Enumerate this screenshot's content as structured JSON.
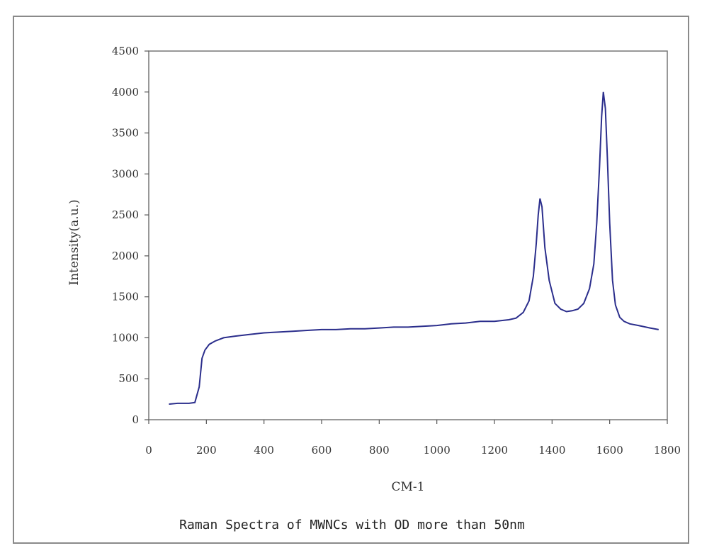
{
  "chart_data": {
    "type": "line",
    "title": "",
    "caption": "Raman Spectra of MWNCs with OD more than 50nm",
    "xlabel": "CM-1",
    "ylabel": "Intensity(a.u.)",
    "xlim": [
      0,
      1800
    ],
    "ylim": [
      0,
      4500
    ],
    "x_ticks": [
      0,
      200,
      400,
      600,
      800,
      1000,
      1200,
      1400,
      1600,
      1800
    ],
    "x_tick_labels": [
      "0",
      "200",
      "400",
      "600",
      "800",
      "1000",
      "1200",
      "1400",
      "1600",
      "1800"
    ],
    "y_ticks": [
      0,
      500,
      1000,
      1500,
      2000,
      2500,
      3000,
      3500,
      4000,
      4500
    ],
    "y_tick_labels": [
      "0",
      "500",
      "1000",
      "1500",
      "2000",
      "2500",
      "3000",
      "3500",
      "4000",
      "4500"
    ],
    "grid": false,
    "line_color": "#2b2e8c",
    "series": [
      {
        "x": [
          70,
          100,
          140,
          160,
          175,
          185,
          195,
          210,
          230,
          260,
          300,
          350,
          400,
          450,
          500,
          550,
          600,
          650,
          700,
          750,
          800,
          850,
          900,
          950,
          1000,
          1050,
          1100,
          1150,
          1200,
          1250,
          1275,
          1300,
          1320,
          1335,
          1345,
          1352,
          1358,
          1365,
          1375,
          1390,
          1410,
          1430,
          1450,
          1470,
          1490,
          1510,
          1530,
          1545,
          1555,
          1565,
          1572,
          1578,
          1585,
          1592,
          1600,
          1610,
          1620,
          1635,
          1650,
          1670,
          1700,
          1740,
          1770
        ],
        "y": [
          190,
          200,
          200,
          210,
          400,
          750,
          850,
          920,
          960,
          1000,
          1020,
          1040,
          1060,
          1070,
          1080,
          1090,
          1100,
          1100,
          1110,
          1110,
          1120,
          1130,
          1130,
          1140,
          1150,
          1170,
          1180,
          1200,
          1200,
          1220,
          1240,
          1310,
          1450,
          1750,
          2150,
          2500,
          2700,
          2600,
          2100,
          1700,
          1420,
          1350,
          1320,
          1330,
          1350,
          1420,
          1600,
          1900,
          2400,
          3100,
          3700,
          4000,
          3800,
          3200,
          2400,
          1700,
          1400,
          1250,
          1200,
          1170,
          1150,
          1120,
          1100
        ]
      }
    ]
  }
}
